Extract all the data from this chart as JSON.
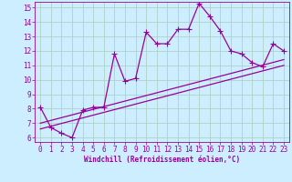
{
  "xlabel": "Windchill (Refroidissement éolien,°C)",
  "ylabel": "",
  "background_color": "#cceeff",
  "line_color": "#990099",
  "grid_color": "#aaccbb",
  "xlim": [
    -0.5,
    23.5
  ],
  "ylim": [
    5.7,
    15.4
  ],
  "yticks": [
    6,
    7,
    8,
    9,
    10,
    11,
    12,
    13,
    14,
    15
  ],
  "xticks": [
    0,
    1,
    2,
    3,
    4,
    5,
    6,
    7,
    8,
    9,
    10,
    11,
    12,
    13,
    14,
    15,
    16,
    17,
    18,
    19,
    20,
    21,
    22,
    23
  ],
  "line1_x": [
    0,
    1,
    2,
    3,
    4,
    5,
    6,
    7,
    8,
    9,
    10,
    11,
    12,
    13,
    14,
    15,
    16,
    17,
    18,
    19,
    20,
    21,
    22,
    23
  ],
  "line1_y": [
    8.1,
    6.7,
    6.3,
    6.0,
    7.9,
    8.1,
    8.1,
    11.8,
    9.9,
    10.1,
    13.3,
    12.5,
    12.5,
    13.5,
    13.5,
    15.3,
    14.4,
    13.4,
    12.0,
    11.8,
    11.2,
    10.9,
    12.5,
    12.0
  ],
  "line2_x": [
    0,
    23
  ],
  "line2_y": [
    6.6,
    11.0
  ],
  "line3_x": [
    0,
    23
  ],
  "line3_y": [
    7.0,
    11.4
  ],
  "marker": "+",
  "markersize": 4,
  "linewidth": 0.9,
  "tick_fontsize": 5.5,
  "xlabel_fontsize": 5.5
}
